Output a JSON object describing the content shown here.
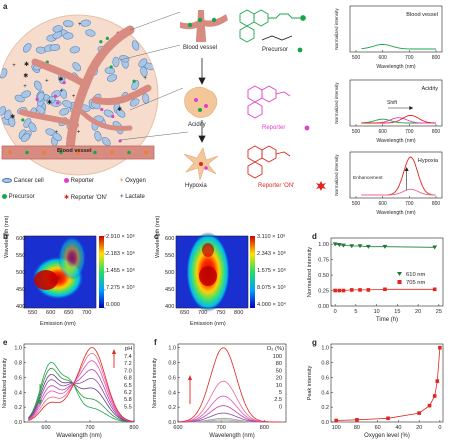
{
  "panel_labels": {
    "a": "a",
    "b": "b",
    "c": "c",
    "d": "d",
    "e": "e",
    "f": "f",
    "g": "g"
  },
  "schematic": {
    "blood_vessel_label": "Blood vessel",
    "stage_labels": [
      "Blood vessel",
      "Acidity",
      "Hypoxia"
    ],
    "molecule_labels": [
      "Precursor",
      "Reporter",
      "Reporter 'ON'"
    ],
    "legend": [
      {
        "label": "Cancer cell",
        "icon": "cancer-cell-icon"
      },
      {
        "label": "Reporter",
        "icon": "reporter-dot-icon"
      },
      {
        "label": "Oxygen",
        "icon": "oxygen-plus-icon"
      },
      {
        "label": "Precursor",
        "icon": "precursor-dot-icon"
      },
      {
        "label": "Reporter 'ON'",
        "icon": "reporter-on-star-icon"
      },
      {
        "label": "Lactate",
        "icon": "lactate-plus-icon"
      }
    ],
    "colors": {
      "precursor": "#1aa54a",
      "reporter": "#e040c8",
      "reporter_on": "#e0261e",
      "oxygen": "#e8821e",
      "lactate": "#8a3ea8"
    }
  },
  "spectra_a": [
    {
      "title": "Blood vessel",
      "xlabel": "Wavelength (nm)",
      "ylabel": "Normalized intensity",
      "xticks": [
        "500",
        "600",
        "700",
        "800"
      ]
    },
    {
      "title": "Acidity",
      "annotation": "Shift",
      "xlabel": "Wavelength (nm)",
      "ylabel": "Normalized intensity",
      "xticks": [
        "500",
        "600",
        "700",
        "800"
      ]
    },
    {
      "title": "Hypoxia",
      "annotation": "Enhancement",
      "xlabel": "Wavelength (nm)",
      "ylabel": "Normalized intensity",
      "xticks": [
        "500",
        "600",
        "700",
        "800"
      ]
    }
  ],
  "map_b": {
    "xlabel": "Emission (nm)",
    "ylabel": "Wavelength (nm)",
    "xticks": [
      "550",
      "600",
      "650",
      "700"
    ],
    "yticks": [
      "600",
      "550",
      "500",
      "450",
      "400"
    ],
    "colorbar": [
      "2.910 × 10⁶",
      "2.183 × 10⁶",
      "1.455 × 10⁶",
      "7.275 × 10⁵",
      "0.000"
    ]
  },
  "map_c": {
    "xlabel": "Emission (nm)",
    "ylabel": "Wavelength (nm)",
    "xticks": [
      "650",
      "700",
      "750",
      "800"
    ],
    "yticks": [
      "600",
      "550",
      "500",
      "450",
      "400"
    ],
    "colorbar": [
      "3.110 × 10⁶",
      "2.343 × 10⁶",
      "1.575 × 10⁶",
      "8.075 × 10⁵",
      "4.000 × 10⁴"
    ]
  },
  "chart_data": [
    {
      "panel": "d",
      "type": "line",
      "xlabel": "Time (h)",
      "ylabel": "Normalized intensity",
      "xlim": [
        -1,
        26
      ],
      "ylim": [
        0,
        1.1
      ],
      "xticks": [
        0,
        5,
        10,
        15,
        20,
        25
      ],
      "yticks": [
        0,
        0.25,
        0.5,
        0.75,
        1.0
      ],
      "series": [
        {
          "name": "610 nm",
          "color": "#1f7a3a",
          "marker": "triangle",
          "x": [
            0,
            1,
            2,
            4,
            6,
            8,
            12,
            24
          ],
          "y": [
            1.0,
            0.99,
            0.98,
            0.97,
            0.97,
            0.96,
            0.96,
            0.95
          ]
        },
        {
          "name": "705 nm",
          "color": "#e0261e",
          "marker": "square",
          "x": [
            0,
            1,
            2,
            4,
            6,
            8,
            12,
            24
          ],
          "y": [
            0.25,
            0.25,
            0.25,
            0.26,
            0.26,
            0.26,
            0.27,
            0.27
          ]
        }
      ]
    },
    {
      "panel": "e",
      "type": "line",
      "xlabel": "Wavelength (nm)",
      "ylabel": "Normalized intensity",
      "xlim": [
        550,
        800
      ],
      "ylim": [
        0,
        1.05
      ],
      "xticks": [
        600,
        700,
        800
      ],
      "yticks": [
        0,
        0.2,
        0.4,
        0.6,
        0.8,
        1.0
      ],
      "legend_title": "pH",
      "series": [
        {
          "name": "7.4",
          "color": "#1aa54a",
          "peak1": 0.78,
          "peak2": 0.18
        },
        {
          "name": "7.2",
          "color": "#2e9040",
          "peak1": 0.7,
          "peak2": 0.3
        },
        {
          "name": "7.0",
          "color": "#6a3a8a",
          "peak1": 0.62,
          "peak2": 0.45
        },
        {
          "name": "6.8",
          "color": "#8a4aa0",
          "peak1": 0.55,
          "peak2": 0.58
        },
        {
          "name": "6.5",
          "color": "#c040b0",
          "peak1": 0.47,
          "peak2": 0.7
        },
        {
          "name": "6.2",
          "color": "#e050c0",
          "peak1": 0.4,
          "peak2": 0.82
        },
        {
          "name": "5.8",
          "color": "#e86a8a",
          "peak1": 0.32,
          "peak2": 0.92
        },
        {
          "name": "5.5",
          "color": "#e0261e",
          "peak1": 0.25,
          "peak2": 1.0
        }
      ]
    },
    {
      "panel": "f",
      "type": "line",
      "xlabel": "Wavelength (nm)",
      "ylabel": "Normalized intensity",
      "xlim": [
        600,
        850
      ],
      "ylim": [
        0,
        1.05
      ],
      "xticks": [
        600,
        700,
        800
      ],
      "yticks": [
        0,
        0.2,
        0.4,
        0.6,
        0.8,
        1.0
      ],
      "legend_title": "O₂ (%)",
      "series": [
        {
          "name": "100",
          "color": "#cccccc",
          "peak": 0.02
        },
        {
          "name": "80",
          "color": "#b0b0b0",
          "peak": 0.03
        },
        {
          "name": "50",
          "color": "#9a9a9a",
          "peak": 0.05
        },
        {
          "name": "20",
          "color": "#8a4aa0",
          "peak": 0.12
        },
        {
          "name": "10",
          "color": "#c040b0",
          "peak": 0.22
        },
        {
          "name": "5",
          "color": "#e050c0",
          "peak": 0.35
        },
        {
          "name": "2.5",
          "color": "#e86a8a",
          "peak": 0.55
        },
        {
          "name": "0",
          "color": "#e0261e",
          "peak": 1.0
        }
      ]
    },
    {
      "panel": "g",
      "type": "line",
      "xlabel": "Oxygen level (%)",
      "ylabel": "Peak intensity",
      "xlim": [
        105,
        -3
      ],
      "ylim": [
        0,
        1.05
      ],
      "xticks": [
        100,
        80,
        60,
        40,
        20,
        0
      ],
      "yticks": [
        0,
        0.2,
        0.4,
        0.6,
        0.8,
        1.0
      ],
      "series": [
        {
          "name": "",
          "color": "#e0261e",
          "marker": "square",
          "x": [
            100,
            80,
            50,
            20,
            10,
            5,
            2.5,
            0
          ],
          "y": [
            0.02,
            0.03,
            0.05,
            0.12,
            0.22,
            0.35,
            0.55,
            1.0
          ]
        }
      ]
    }
  ]
}
